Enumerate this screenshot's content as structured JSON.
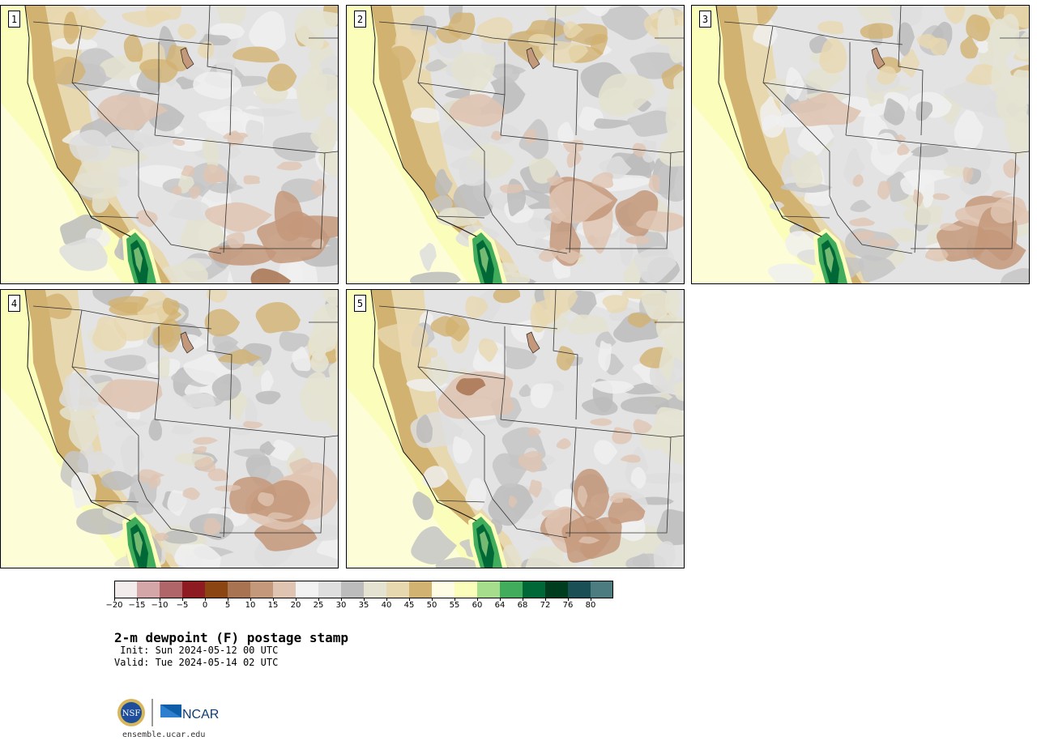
{
  "stamps": [
    {
      "label": "1",
      "variant": 0
    },
    {
      "label": "2",
      "variant": 1
    },
    {
      "label": "3",
      "variant": 2
    },
    {
      "label": "4",
      "variant": 3
    },
    {
      "label": "5",
      "variant": 4
    }
  ],
  "colorbar": {
    "colors": [
      "#f3ecec",
      "#d4a6a8",
      "#b06569",
      "#8e1a22",
      "#8b4513",
      "#a87350",
      "#c4987a",
      "#dfc4b2",
      "#f2f2f2",
      "#dedede",
      "#bcbcbc",
      "#e4e2d0",
      "#e8d8b0",
      "#d2b270",
      "#fefce4",
      "#fbfdbb",
      "#a5dd8c",
      "#41ac5b",
      "#006837",
      "#003d1e",
      "#1a4f56",
      "#4c7b80"
    ],
    "ticks": [
      "-20",
      "-15",
      "-10",
      "-5",
      "0",
      "5",
      "10",
      "15",
      "20",
      "25",
      "30",
      "35",
      "40",
      "45",
      "50",
      "55",
      "60",
      "64",
      "68",
      "72",
      "76",
      "80"
    ]
  },
  "title": "2-m dewpoint (F) postage stamp",
  "init": " Init: Sun 2024-05-12 00 UTC",
  "valid": "Valid: Tue 2024-05-14 02 UTC",
  "logos": {
    "nsf": "NSF",
    "ncar": "NCAR"
  },
  "url": "ensemble.ucar.edu"
}
